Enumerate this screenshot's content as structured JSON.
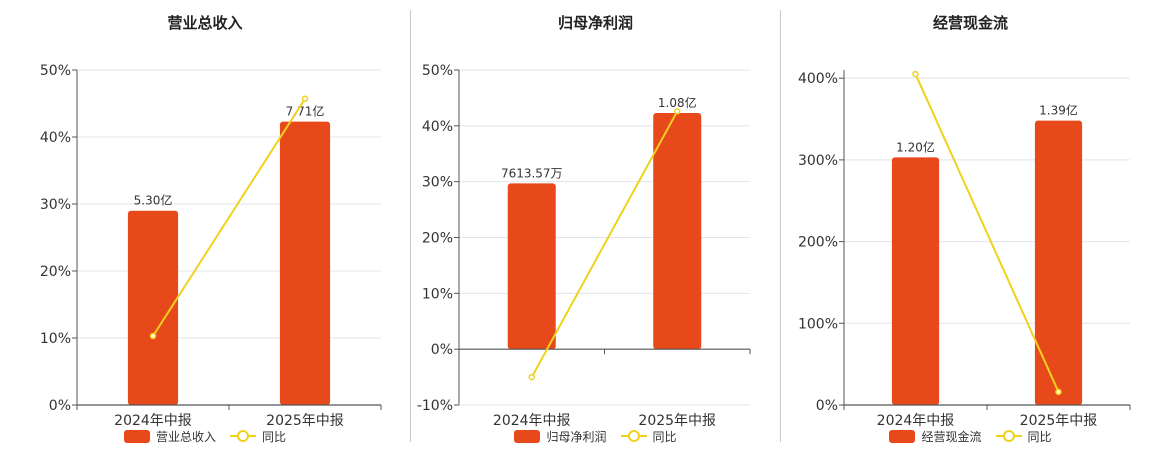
{
  "colors": {
    "bar": "#e8491b",
    "line": "#f0d21c",
    "grid": "#e3e3ee",
    "axis": "#555555"
  },
  "chart_data": [
    {
      "type": "bar",
      "title": "营业总收入",
      "categories": [
        "2024年中报",
        "2025年中报"
      ],
      "series": [
        {
          "name": "营业总收入",
          "kind": "bar",
          "values": [
            29,
            42.3
          ],
          "labels": [
            "5.30亿",
            "7.71亿"
          ]
        },
        {
          "name": "同比",
          "kind": "line",
          "values": [
            10.3,
            45.7
          ]
        }
      ],
      "ylim": [
        0,
        50
      ],
      "yticks": [
        0,
        10,
        20,
        30,
        40,
        50
      ],
      "ytick_labels": [
        "0%",
        "10%",
        "20%",
        "30%",
        "40%",
        "50%"
      ],
      "grid": true,
      "legend_position": "bottom"
    },
    {
      "type": "bar",
      "title": "归母净利润",
      "categories": [
        "2024年中报",
        "2025年中报"
      ],
      "series": [
        {
          "name": "归母净利润",
          "kind": "bar",
          "values": [
            29.7,
            42.3
          ],
          "labels": [
            "7613.57万",
            "1.08亿"
          ]
        },
        {
          "name": "同比",
          "kind": "line",
          "values": [
            -5,
            42.6
          ]
        }
      ],
      "ylim": [
        -10,
        50
      ],
      "yticks": [
        -10,
        0,
        10,
        20,
        30,
        40,
        50
      ],
      "ytick_labels": [
        "-10%",
        "0%",
        "10%",
        "20%",
        "30%",
        "40%",
        "50%"
      ],
      "grid": true,
      "legend_position": "bottom"
    },
    {
      "type": "bar",
      "title": "经营现金流",
      "categories": [
        "2024年中报",
        "2025年中报"
      ],
      "series": [
        {
          "name": "经营现金流",
          "kind": "bar",
          "values": [
            303,
            348
          ],
          "labels": [
            "1.20亿",
            "1.39亿"
          ]
        },
        {
          "name": "同比",
          "kind": "line",
          "values": [
            405,
            16
          ]
        }
      ],
      "ylim": [
        0,
        410
      ],
      "yticks": [
        0,
        100,
        200,
        300,
        400
      ],
      "ytick_labels": [
        "0%",
        "100%",
        "200%",
        "300%",
        "400%"
      ],
      "grid": true,
      "legend_position": "bottom"
    }
  ]
}
